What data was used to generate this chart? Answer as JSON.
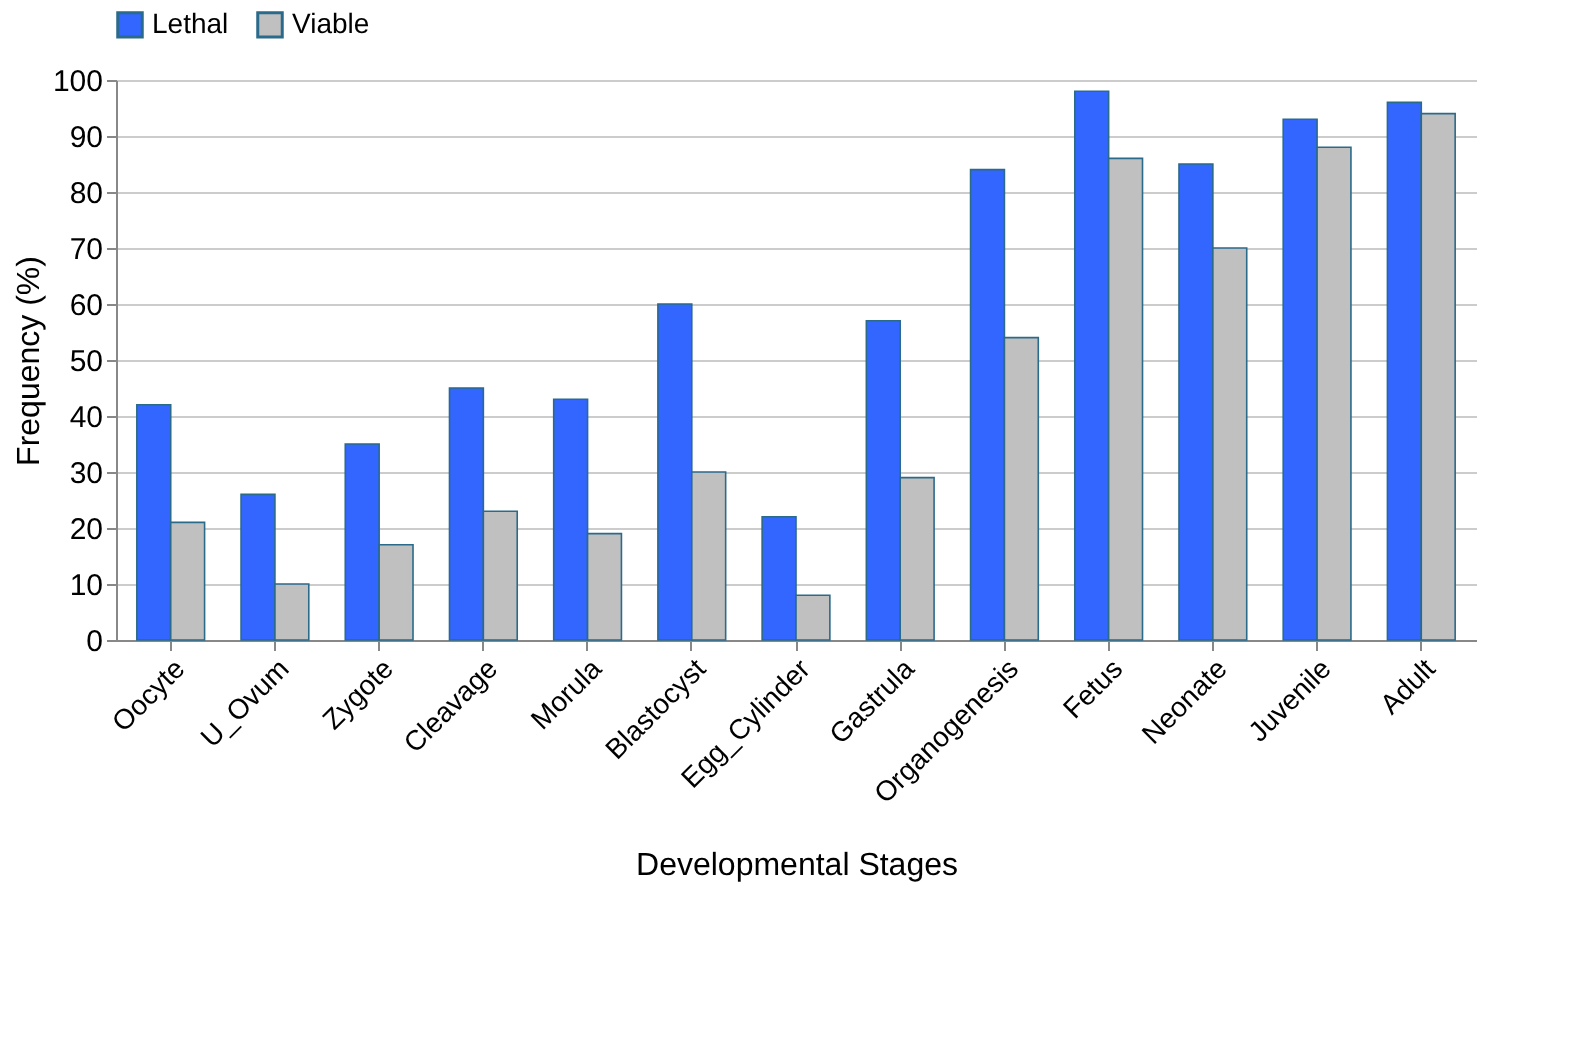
{
  "chart_data": {
    "type": "bar",
    "xlabel": "Developmental Stages",
    "ylabel": "Frequency (%)",
    "categories": [
      "Oocyte",
      "U_Ovum",
      "Zygote",
      "Cleavage",
      "Morula",
      "Blastocyst",
      "Egg_Cylinder",
      "Gastrula",
      "Organogenesis",
      "Fetus",
      "Neonate",
      "Juvenile",
      "Adult"
    ],
    "series": [
      {
        "name": "Lethal",
        "color": "#3366ff",
        "values": [
          42,
          26,
          35,
          45,
          43,
          60,
          22,
          57,
          84,
          98,
          85,
          93,
          96
        ]
      },
      {
        "name": "Viable",
        "color": "#c0c0c0",
        "values": [
          21,
          10,
          17,
          23,
          19,
          30,
          8,
          29,
          54,
          86,
          70,
          88,
          94
        ]
      }
    ],
    "ylim": [
      0,
      100
    ],
    "yticks": [
      0,
      10,
      20,
      30,
      40,
      50,
      60,
      70,
      80,
      90,
      100
    ],
    "grid": "y",
    "legend": "top"
  }
}
